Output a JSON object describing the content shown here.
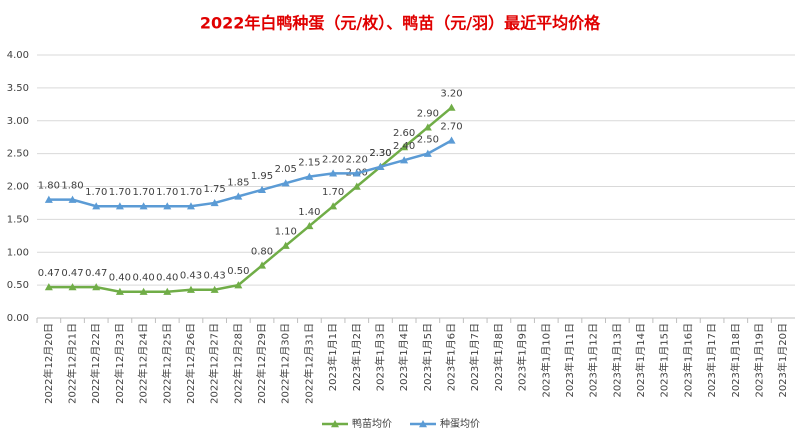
{
  "chart_data": {
    "type": "line",
    "title": "2022年白鸭种蛋（元/枚）、鸭苗（元/羽）最近平均价格",
    "categories": [
      "2022年12月20日",
      "2022年12月21日",
      "2022年12月22日",
      "2022年12月23日",
      "2022年12月24日",
      "2022年12月25日",
      "2022年12月26日",
      "2022年12月27日",
      "2022年12月28日",
      "2022年12月29日",
      "2022年12月30日",
      "2022年12月31日",
      "2023年1月1日",
      "2023年1月2日",
      "2023年1月3日",
      "2023年1月4日",
      "2023年1月5日",
      "2023年1月6日",
      "2023年1月7日",
      "2023年1月8日",
      "2023年1月9日",
      "2023年1月10日",
      "2023年1月11日",
      "2023年1月12日",
      "2023年1月13日",
      "2023年1月14日",
      "2023年1月15日",
      "2023年1月16日",
      "2023年1月17日",
      "2023年1月18日",
      "2023年1月19日",
      "2023年1月20日"
    ],
    "series": [
      {
        "name": "鸭苗均价",
        "color": "#70ad47",
        "marker": "triangle",
        "values": [
          0.47,
          0.47,
          0.47,
          0.4,
          0.4,
          0.4,
          0.43,
          0.43,
          0.5,
          0.8,
          1.1,
          1.4,
          1.7,
          2.0,
          2.3,
          2.6,
          2.9,
          3.2,
          null,
          null,
          null,
          null,
          null,
          null,
          null,
          null,
          null,
          null,
          null,
          null,
          null,
          null
        ],
        "value_labels": [
          "0.47",
          "0.47",
          "0.47",
          "0.40",
          "0.40",
          "0.40",
          "0.43",
          "0.43",
          "0.50",
          "0.80",
          "1.10",
          "1.40",
          "1.70",
          "2.00",
          "2.30",
          "2.60",
          "2.90",
          "3.20",
          null,
          null,
          null,
          null,
          null,
          null,
          null,
          null,
          null,
          null,
          null,
          null,
          null,
          null
        ]
      },
      {
        "name": "种蛋均价",
        "color": "#5b9bd5",
        "marker": "triangle",
        "values": [
          1.8,
          1.8,
          1.7,
          1.7,
          1.7,
          1.7,
          1.7,
          1.75,
          1.85,
          1.95,
          2.05,
          2.15,
          2.2,
          2.2,
          2.3,
          2.4,
          2.5,
          2.7,
          null,
          null,
          null,
          null,
          null,
          null,
          null,
          null,
          null,
          null,
          null,
          null,
          null,
          null
        ],
        "value_labels": [
          "1.80",
          "1.80",
          "1.70",
          "1.70",
          "1.70",
          "1.70",
          "1.70",
          "1.75",
          "1.85",
          "1.95",
          "2.05",
          "2.15",
          "2.20",
          "2.20",
          "2.30",
          "2.40",
          "2.50",
          "2.70",
          null,
          null,
          null,
          null,
          null,
          null,
          null,
          null,
          null,
          null,
          null,
          null,
          null,
          null
        ]
      }
    ],
    "ylim": [
      0,
      4
    ],
    "yticks": [
      {
        "value": 0,
        "label": "0.00"
      },
      {
        "value": 0.5,
        "label": "0.50"
      },
      {
        "value": 1,
        "label": "1.00"
      },
      {
        "value": 1.5,
        "label": "1.50"
      },
      {
        "value": 2,
        "label": "2.00"
      },
      {
        "value": 2.5,
        "label": "2.50"
      },
      {
        "value": 3,
        "label": "3.00"
      },
      {
        "value": 3.5,
        "label": "3.50"
      },
      {
        "value": 4,
        "label": "4.00"
      }
    ],
    "grid": true,
    "legend": "bottom"
  }
}
